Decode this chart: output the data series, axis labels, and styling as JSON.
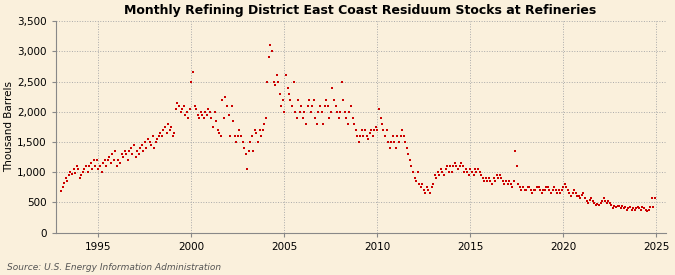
{
  "title": "Monthly Refining District East Coast Residuum Stocks at Refineries",
  "ylabel": "Thousand Barrels",
  "source": "Source: U.S. Energy Information Administration",
  "bg_color": "#FAF0DC",
  "marker_color": "#CC0000",
  "xlim": [
    1992.7,
    2025.5
  ],
  "ylim": [
    0,
    3500
  ],
  "yticks": [
    0,
    500,
    1000,
    1500,
    2000,
    2500,
    3000,
    3500
  ],
  "xticks": [
    1995,
    2000,
    2005,
    2010,
    2015,
    2020,
    2025
  ],
  "data": [
    [
      1993.0,
      680
    ],
    [
      1993.08,
      750
    ],
    [
      1993.17,
      820
    ],
    [
      1993.25,
      900
    ],
    [
      1993.33,
      850
    ],
    [
      1993.42,
      950
    ],
    [
      1993.5,
      1000
    ],
    [
      1993.58,
      970
    ],
    [
      1993.67,
      1050
    ],
    [
      1993.75,
      980
    ],
    [
      1993.83,
      1100
    ],
    [
      1993.92,
      1050
    ],
    [
      1994.0,
      900
    ],
    [
      1994.08,
      950
    ],
    [
      1994.17,
      1000
    ],
    [
      1994.25,
      1050
    ],
    [
      1994.33,
      1100
    ],
    [
      1994.42,
      1000
    ],
    [
      1994.5,
      1100
    ],
    [
      1994.58,
      1150
    ],
    [
      1994.67,
      1050
    ],
    [
      1994.75,
      1200
    ],
    [
      1994.83,
      1100
    ],
    [
      1994.92,
      1200
    ],
    [
      1995.0,
      1050
    ],
    [
      1995.08,
      1100
    ],
    [
      1995.17,
      1000
    ],
    [
      1995.25,
      1150
    ],
    [
      1995.33,
      1200
    ],
    [
      1995.42,
      1100
    ],
    [
      1995.5,
      1200
    ],
    [
      1995.58,
      1250
    ],
    [
      1995.67,
      1150
    ],
    [
      1995.75,
      1300
    ],
    [
      1995.83,
      1200
    ],
    [
      1995.92,
      1350
    ],
    [
      1996.0,
      1100
    ],
    [
      1996.08,
      1200
    ],
    [
      1996.17,
      1150
    ],
    [
      1996.25,
      1300
    ],
    [
      1996.33,
      1250
    ],
    [
      1996.42,
      1350
    ],
    [
      1996.5,
      1300
    ],
    [
      1996.58,
      1200
    ],
    [
      1996.67,
      1350
    ],
    [
      1996.75,
      1400
    ],
    [
      1996.83,
      1300
    ],
    [
      1996.92,
      1450
    ],
    [
      1997.0,
      1250
    ],
    [
      1997.08,
      1350
    ],
    [
      1997.17,
      1300
    ],
    [
      1997.25,
      1400
    ],
    [
      1997.33,
      1450
    ],
    [
      1997.42,
      1350
    ],
    [
      1997.5,
      1500
    ],
    [
      1997.58,
      1400
    ],
    [
      1997.67,
      1550
    ],
    [
      1997.75,
      1500
    ],
    [
      1997.83,
      1450
    ],
    [
      1997.92,
      1600
    ],
    [
      1998.0,
      1400
    ],
    [
      1998.08,
      1500
    ],
    [
      1998.17,
      1550
    ],
    [
      1998.25,
      1600
    ],
    [
      1998.33,
      1650
    ],
    [
      1998.42,
      1600
    ],
    [
      1998.5,
      1700
    ],
    [
      1998.58,
      1750
    ],
    [
      1998.67,
      1650
    ],
    [
      1998.75,
      1800
    ],
    [
      1998.83,
      1700
    ],
    [
      1998.92,
      1750
    ],
    [
      1999.0,
      1600
    ],
    [
      1999.08,
      1650
    ],
    [
      1999.17,
      2050
    ],
    [
      1999.25,
      2150
    ],
    [
      1999.33,
      2100
    ],
    [
      1999.42,
      2000
    ],
    [
      1999.5,
      2050
    ],
    [
      1999.58,
      2100
    ],
    [
      1999.67,
      1950
    ],
    [
      1999.75,
      2000
    ],
    [
      1999.83,
      1900
    ],
    [
      1999.92,
      2050
    ],
    [
      2000.0,
      2500
    ],
    [
      2000.08,
      2650
    ],
    [
      2000.17,
      2100
    ],
    [
      2000.25,
      2050
    ],
    [
      2000.33,
      1950
    ],
    [
      2000.42,
      1900
    ],
    [
      2000.5,
      2000
    ],
    [
      2000.58,
      1950
    ],
    [
      2000.67,
      1900
    ],
    [
      2000.75,
      2000
    ],
    [
      2000.83,
      1950
    ],
    [
      2000.92,
      2050
    ],
    [
      2001.0,
      2000
    ],
    [
      2001.08,
      1900
    ],
    [
      2001.17,
      1750
    ],
    [
      2001.25,
      2000
    ],
    [
      2001.33,
      1850
    ],
    [
      2001.42,
      1700
    ],
    [
      2001.5,
      1650
    ],
    [
      2001.58,
      1600
    ],
    [
      2001.67,
      2200
    ],
    [
      2001.75,
      1900
    ],
    [
      2001.83,
      2250
    ],
    [
      2001.92,
      2100
    ],
    [
      2002.0,
      1950
    ],
    [
      2002.08,
      1600
    ],
    [
      2002.17,
      2100
    ],
    [
      2002.25,
      1850
    ],
    [
      2002.33,
      1600
    ],
    [
      2002.42,
      1500
    ],
    [
      2002.5,
      1600
    ],
    [
      2002.58,
      1700
    ],
    [
      2002.67,
      1600
    ],
    [
      2002.75,
      1500
    ],
    [
      2002.83,
      1400
    ],
    [
      2002.92,
      1300
    ],
    [
      2003.0,
      1050
    ],
    [
      2003.08,
      1350
    ],
    [
      2003.17,
      1500
    ],
    [
      2003.25,
      1600
    ],
    [
      2003.33,
      1350
    ],
    [
      2003.42,
      1700
    ],
    [
      2003.5,
      1650
    ],
    [
      2003.58,
      1500
    ],
    [
      2003.67,
      1700
    ],
    [
      2003.75,
      1600
    ],
    [
      2003.83,
      1700
    ],
    [
      2003.92,
      1800
    ],
    [
      2004.0,
      1900
    ],
    [
      2004.08,
      2500
    ],
    [
      2004.17,
      2900
    ],
    [
      2004.25,
      3100
    ],
    [
      2004.33,
      3000
    ],
    [
      2004.42,
      2500
    ],
    [
      2004.5,
      2450
    ],
    [
      2004.58,
      2600
    ],
    [
      2004.67,
      2500
    ],
    [
      2004.75,
      2300
    ],
    [
      2004.83,
      2100
    ],
    [
      2004.92,
      2200
    ],
    [
      2005.0,
      2000
    ],
    [
      2005.08,
      2600
    ],
    [
      2005.17,
      2400
    ],
    [
      2005.25,
      2300
    ],
    [
      2005.33,
      2200
    ],
    [
      2005.42,
      2100
    ],
    [
      2005.5,
      2500
    ],
    [
      2005.58,
      2000
    ],
    [
      2005.67,
      1900
    ],
    [
      2005.75,
      2200
    ],
    [
      2005.83,
      2000
    ],
    [
      2005.92,
      2100
    ],
    [
      2006.0,
      1900
    ],
    [
      2006.08,
      2000
    ],
    [
      2006.17,
      1800
    ],
    [
      2006.25,
      2100
    ],
    [
      2006.33,
      2200
    ],
    [
      2006.42,
      2000
    ],
    [
      2006.5,
      2100
    ],
    [
      2006.58,
      2200
    ],
    [
      2006.67,
      1900
    ],
    [
      2006.75,
      1800
    ],
    [
      2006.83,
      2000
    ],
    [
      2006.92,
      2100
    ],
    [
      2007.0,
      2000
    ],
    [
      2007.08,
      1800
    ],
    [
      2007.17,
      2100
    ],
    [
      2007.25,
      2200
    ],
    [
      2007.33,
      2100
    ],
    [
      2007.42,
      1900
    ],
    [
      2007.5,
      2000
    ],
    [
      2007.58,
      2400
    ],
    [
      2007.67,
      2200
    ],
    [
      2007.75,
      2100
    ],
    [
      2007.83,
      2000
    ],
    [
      2007.92,
      1900
    ],
    [
      2008.0,
      2000
    ],
    [
      2008.08,
      2500
    ],
    [
      2008.17,
      2200
    ],
    [
      2008.25,
      2000
    ],
    [
      2008.33,
      1900
    ],
    [
      2008.42,
      1800
    ],
    [
      2008.5,
      2000
    ],
    [
      2008.58,
      2100
    ],
    [
      2008.67,
      1900
    ],
    [
      2008.75,
      1800
    ],
    [
      2008.83,
      1700
    ],
    [
      2008.92,
      1600
    ],
    [
      2009.0,
      1500
    ],
    [
      2009.08,
      1600
    ],
    [
      2009.17,
      1700
    ],
    [
      2009.25,
      1600
    ],
    [
      2009.33,
      1700
    ],
    [
      2009.42,
      1600
    ],
    [
      2009.5,
      1550
    ],
    [
      2009.58,
      1650
    ],
    [
      2009.67,
      1700
    ],
    [
      2009.75,
      1600
    ],
    [
      2009.83,
      1700
    ],
    [
      2009.92,
      1750
    ],
    [
      2010.0,
      1700
    ],
    [
      2010.08,
      2050
    ],
    [
      2010.17,
      1900
    ],
    [
      2010.25,
      1800
    ],
    [
      2010.33,
      1700
    ],
    [
      2010.42,
      1600
    ],
    [
      2010.5,
      1700
    ],
    [
      2010.58,
      1500
    ],
    [
      2010.67,
      1400
    ],
    [
      2010.75,
      1500
    ],
    [
      2010.83,
      1600
    ],
    [
      2010.92,
      1500
    ],
    [
      2011.0,
      1400
    ],
    [
      2011.08,
      1600
    ],
    [
      2011.17,
      1500
    ],
    [
      2011.25,
      1600
    ],
    [
      2011.33,
      1700
    ],
    [
      2011.42,
      1600
    ],
    [
      2011.5,
      1500
    ],
    [
      2011.58,
      1400
    ],
    [
      2011.67,
      1300
    ],
    [
      2011.75,
      1200
    ],
    [
      2011.83,
      1100
    ],
    [
      2011.92,
      1000
    ],
    [
      2012.0,
      900
    ],
    [
      2012.08,
      850
    ],
    [
      2012.17,
      1000
    ],
    [
      2012.25,
      800
    ],
    [
      2012.33,
      750
    ],
    [
      2012.42,
      800
    ],
    [
      2012.5,
      700
    ],
    [
      2012.58,
      650
    ],
    [
      2012.67,
      750
    ],
    [
      2012.75,
      700
    ],
    [
      2012.83,
      650
    ],
    [
      2012.92,
      750
    ],
    [
      2013.0,
      800
    ],
    [
      2013.08,
      950
    ],
    [
      2013.17,
      900
    ],
    [
      2013.25,
      1000
    ],
    [
      2013.33,
      950
    ],
    [
      2013.42,
      1050
    ],
    [
      2013.5,
      1000
    ],
    [
      2013.58,
      950
    ],
    [
      2013.67,
      1050
    ],
    [
      2013.75,
      1100
    ],
    [
      2013.83,
      1000
    ],
    [
      2013.92,
      1100
    ],
    [
      2014.0,
      1000
    ],
    [
      2014.08,
      1100
    ],
    [
      2014.17,
      1150
    ],
    [
      2014.25,
      1100
    ],
    [
      2014.33,
      1050
    ],
    [
      2014.42,
      1100
    ],
    [
      2014.5,
      1150
    ],
    [
      2014.58,
      1100
    ],
    [
      2014.67,
      1000
    ],
    [
      2014.75,
      1050
    ],
    [
      2014.83,
      1000
    ],
    [
      2014.92,
      950
    ],
    [
      2015.0,
      1050
    ],
    [
      2015.08,
      1000
    ],
    [
      2015.17,
      950
    ],
    [
      2015.25,
      1050
    ],
    [
      2015.33,
      1000
    ],
    [
      2015.42,
      1050
    ],
    [
      2015.5,
      1000
    ],
    [
      2015.58,
      950
    ],
    [
      2015.67,
      900
    ],
    [
      2015.75,
      850
    ],
    [
      2015.83,
      900
    ],
    [
      2015.92,
      850
    ],
    [
      2016.0,
      900
    ],
    [
      2016.08,
      850
    ],
    [
      2016.17,
      800
    ],
    [
      2016.25,
      900
    ],
    [
      2016.33,
      850
    ],
    [
      2016.42,
      950
    ],
    [
      2016.5,
      900
    ],
    [
      2016.58,
      950
    ],
    [
      2016.67,
      900
    ],
    [
      2016.75,
      850
    ],
    [
      2016.83,
      800
    ],
    [
      2016.92,
      850
    ],
    [
      2017.0,
      800
    ],
    [
      2017.08,
      850
    ],
    [
      2017.17,
      800
    ],
    [
      2017.25,
      750
    ],
    [
      2017.33,
      850
    ],
    [
      2017.42,
      1350
    ],
    [
      2017.5,
      1100
    ],
    [
      2017.58,
      800
    ],
    [
      2017.67,
      750
    ],
    [
      2017.75,
      700
    ],
    [
      2017.83,
      750
    ],
    [
      2017.92,
      700
    ],
    [
      2018.0,
      700
    ],
    [
      2018.08,
      750
    ],
    [
      2018.17,
      750
    ],
    [
      2018.25,
      700
    ],
    [
      2018.33,
      650
    ],
    [
      2018.42,
      700
    ],
    [
      2018.5,
      700
    ],
    [
      2018.58,
      750
    ],
    [
      2018.67,
      750
    ],
    [
      2018.75,
      700
    ],
    [
      2018.83,
      650
    ],
    [
      2018.92,
      700
    ],
    [
      2019.0,
      700
    ],
    [
      2019.08,
      750
    ],
    [
      2019.17,
      750
    ],
    [
      2019.25,
      700
    ],
    [
      2019.33,
      650
    ],
    [
      2019.42,
      700
    ],
    [
      2019.5,
      750
    ],
    [
      2019.58,
      700
    ],
    [
      2019.67,
      650
    ],
    [
      2019.75,
      700
    ],
    [
      2019.83,
      650
    ],
    [
      2019.92,
      700
    ],
    [
      2020.0,
      750
    ],
    [
      2020.08,
      800
    ],
    [
      2020.17,
      750
    ],
    [
      2020.25,
      700
    ],
    [
      2020.33,
      650
    ],
    [
      2020.42,
      600
    ],
    [
      2020.5,
      650
    ],
    [
      2020.58,
      700
    ],
    [
      2020.67,
      650
    ],
    [
      2020.75,
      600
    ],
    [
      2020.83,
      600
    ],
    [
      2020.92,
      580
    ],
    [
      2021.0,
      620
    ],
    [
      2021.08,
      660
    ],
    [
      2021.17,
      580
    ],
    [
      2021.25,
      530
    ],
    [
      2021.33,
      490
    ],
    [
      2021.42,
      540
    ],
    [
      2021.5,
      580
    ],
    [
      2021.58,
      530
    ],
    [
      2021.67,
      490
    ],
    [
      2021.75,
      450
    ],
    [
      2021.83,
      480
    ],
    [
      2021.92,
      460
    ],
    [
      2022.0,
      490
    ],
    [
      2022.08,
      530
    ],
    [
      2022.17,
      570
    ],
    [
      2022.25,
      530
    ],
    [
      2022.33,
      490
    ],
    [
      2022.42,
      530
    ],
    [
      2022.5,
      490
    ],
    [
      2022.58,
      450
    ],
    [
      2022.67,
      410
    ],
    [
      2022.75,
      440
    ],
    [
      2022.83,
      430
    ],
    [
      2022.92,
      440
    ],
    [
      2023.0,
      440
    ],
    [
      2023.08,
      400
    ],
    [
      2023.17,
      440
    ],
    [
      2023.25,
      400
    ],
    [
      2023.33,
      420
    ],
    [
      2023.42,
      380
    ],
    [
      2023.5,
      400
    ],
    [
      2023.58,
      420
    ],
    [
      2023.67,
      380
    ],
    [
      2023.75,
      400
    ],
    [
      2023.83,
      380
    ],
    [
      2023.92,
      400
    ],
    [
      2024.0,
      420
    ],
    [
      2024.08,
      400
    ],
    [
      2024.17,
      380
    ],
    [
      2024.25,
      420
    ],
    [
      2024.33,
      400
    ],
    [
      2024.42,
      380
    ],
    [
      2024.5,
      360
    ],
    [
      2024.58,
      380
    ],
    [
      2024.67,
      420
    ],
    [
      2024.75,
      580
    ],
    [
      2024.83,
      420
    ],
    [
      2024.92,
      580
    ]
  ]
}
